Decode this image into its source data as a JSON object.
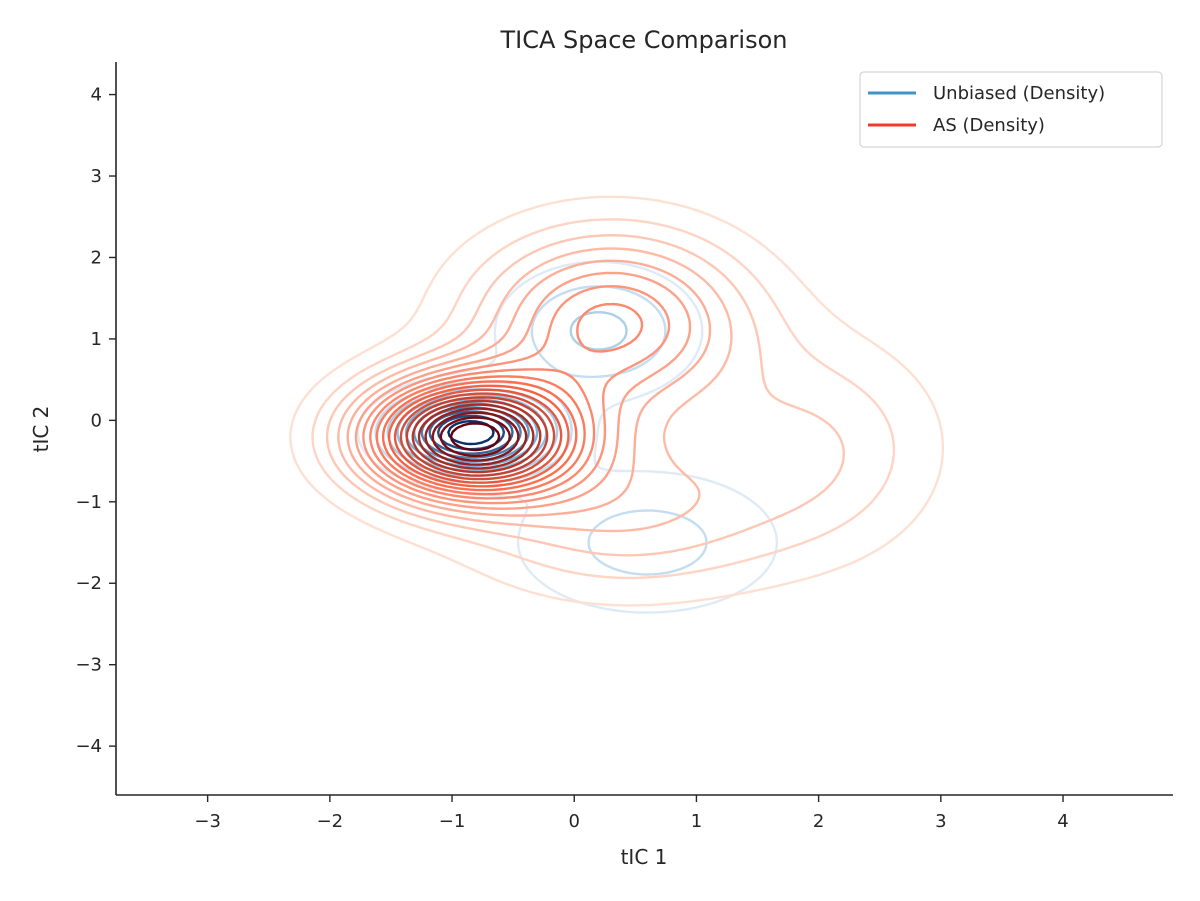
{
  "chart_data": {
    "type": "contour",
    "title": "TICA Space Comparison",
    "xlabel": "tIC 1",
    "ylabel": "tIC 2",
    "xlim": [
      -3.75,
      4.9
    ],
    "ylim": [
      -4.6,
      4.4
    ],
    "xticks": [
      -3,
      -2,
      -1,
      0,
      1,
      2,
      3,
      4
    ],
    "yticks": [
      -4,
      -3,
      -2,
      -1,
      0,
      1,
      2,
      3,
      4
    ],
    "xtick_labels": [
      "−3",
      "−2",
      "−1",
      "0",
      "1",
      "2",
      "3",
      "4"
    ],
    "ytick_labels": [
      "−4",
      "−3",
      "−2",
      "−1",
      "0",
      "1",
      "2",
      "3",
      "4"
    ],
    "grid": false,
    "legend_position": "top-right",
    "series": [
      {
        "name": "Unbiased (Density)",
        "color": "#4292c6",
        "colormap": "Blues",
        "levels": 10,
        "components": [
          {
            "weight": 1.0,
            "mean": [
              -0.85,
              -0.15
            ],
            "sd": [
              0.42,
              0.32
            ]
          },
          {
            "weight": 0.3,
            "mean": [
              0.2,
              1.1
            ],
            "sd": [
              0.55,
              0.55
            ]
          },
          {
            "weight": 0.22,
            "mean": [
              0.6,
              -1.5
            ],
            "sd": [
              0.8,
              0.65
            ]
          }
        ]
      },
      {
        "name": "AS (Density)",
        "color": "#ef3b2c",
        "colormap": "Reds",
        "levels": 20,
        "components": [
          {
            "weight": 1.0,
            "mean": [
              -0.85,
              -0.2
            ],
            "sd": [
              0.6,
              0.5
            ]
          },
          {
            "weight": 0.42,
            "mean": [
              0.3,
              1.2
            ],
            "sd": [
              0.75,
              0.75
            ]
          },
          {
            "weight": 0.14,
            "mean": [
              2.0,
              -0.3
            ],
            "sd": [
              0.7,
              0.9
            ]
          },
          {
            "weight": 0.2,
            "mean": [
              0.4,
              -1.1
            ],
            "sd": [
              0.9,
              0.7
            ]
          }
        ]
      }
    ]
  }
}
